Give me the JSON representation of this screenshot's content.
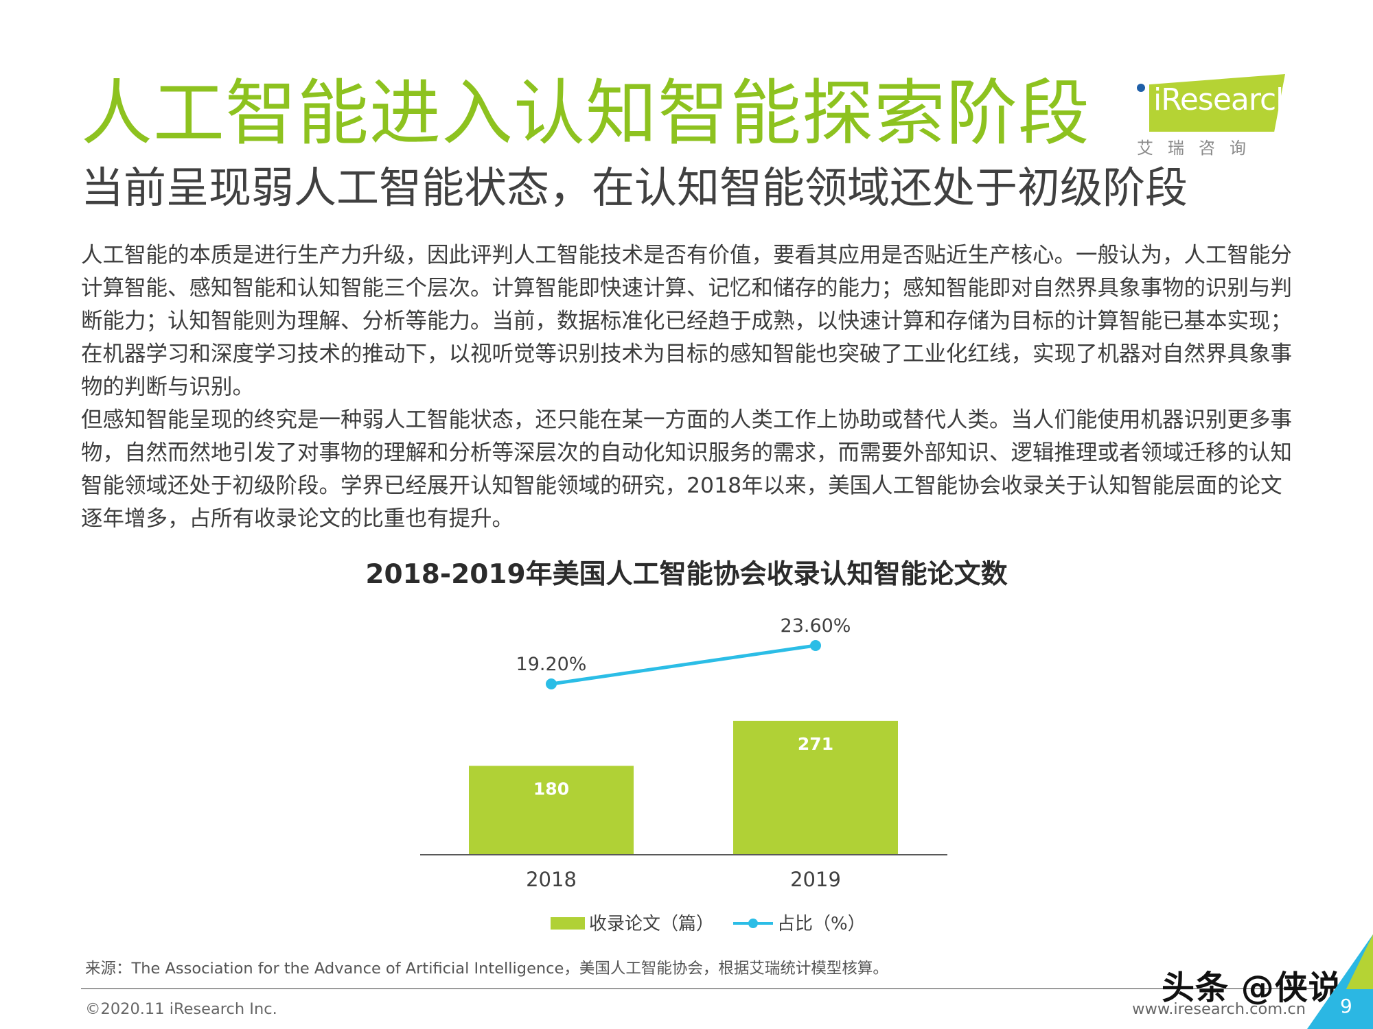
{
  "header": {
    "title": "人工智能进入认知智能探索阶段",
    "subtitle": "当前呈现弱人工智能状态，在认知智能领域还处于初级阶段"
  },
  "logo": {
    "text": "iResearch",
    "sub": "艾瑞咨询",
    "accent_color": "#b5d334",
    "dot_color": "#1f5fa8"
  },
  "body": {
    "paragraph1": "人工智能的本质是进行生产力升级，因此评判人工智能技术是否有价值，要看其应用是否贴近生产核心。一般认为，人工智能分计算智能、感知智能和认知智能三个层次。计算智能即快速计算、记忆和储存的能力；感知智能即对自然界具象事物的识别与判断能力；认知智能则为理解、分析等能力。当前，数据标准化已经趋于成熟，以快速计算和存储为目标的计算智能已基本实现；在机器学习和深度学习技术的推动下，以视听觉等识别技术为目标的感知智能也突破了工业化红线，实现了机器对自然界具象事物的判断与识别。",
    "paragraph2": "但感知智能呈现的终究是一种弱人工智能状态，还只能在某一方面的人类工作上协助或替代人类。当人们能使用机器识别更多事物，自然而然地引发了对事物的理解和分析等深层次的自动化知识服务的需求，而需要外部知识、逻辑推理或者领域迁移的认知智能领域还处于初级阶段。学界已经展开认知智能领域的研究，2018年以来，美国人工智能协会收录关于认知智能层面的论文逐年增多，占所有收录论文的比重也有提升。"
  },
  "chart_data": {
    "type": "bar",
    "title": "2018-2019年美国人工智能协会收录认知智能论文数",
    "categories": [
      "2018",
      "2019"
    ],
    "series": [
      {
        "name": "收录论文（篇）",
        "type": "bar",
        "values": [
          180,
          271
        ],
        "labels": [
          "180",
          "271"
        ],
        "color": "#b0d136"
      },
      {
        "name": "占比（%）",
        "type": "line",
        "values": [
          19.2,
          23.6
        ],
        "labels": [
          "19.20%",
          "23.60%"
        ],
        "color": "#2bbde6"
      }
    ],
    "legend_position": "bottom",
    "grid": false
  },
  "footer": {
    "source": "来源：The Association for the Advance of Artificial Intelligence，美国人工智能协会，根据艾瑞统计模型核算。",
    "copyright": "©2020.11 iResearch Inc.",
    "site": "www.iresearch.com.cn",
    "page": "9",
    "watermark": "头条 @侠说"
  }
}
